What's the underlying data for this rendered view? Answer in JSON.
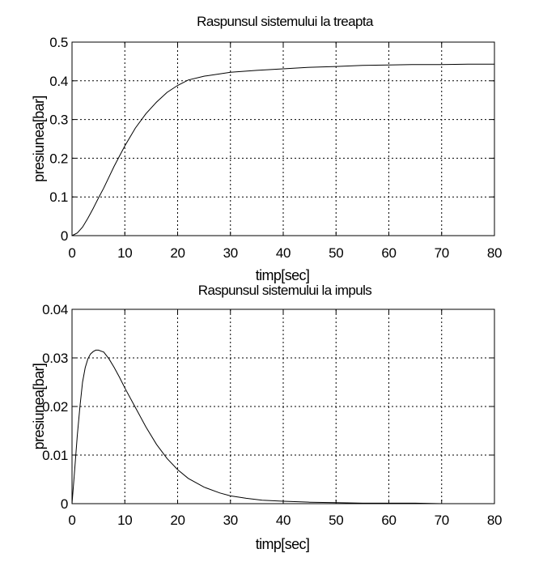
{
  "chart_data": [
    {
      "type": "line",
      "title": "Raspunsul sistemului la treapta",
      "xlabel": "timp[sec]",
      "ylabel": "presiunea[bar]",
      "xlim": [
        0,
        80
      ],
      "ylim": [
        0,
        0.5
      ],
      "grid": true,
      "xticks": [
        "0",
        "10",
        "20",
        "30",
        "40",
        "50",
        "60",
        "70",
        "80"
      ],
      "yticks": [
        "0",
        "0.1",
        "0.2",
        "0.3",
        "0.4",
        "0.5"
      ],
      "x": [
        0,
        1,
        2,
        3,
        4,
        5,
        6,
        8,
        10,
        12,
        14,
        16,
        18,
        20,
        22,
        25,
        30,
        35,
        40,
        45,
        50,
        55,
        60,
        65,
        70,
        75,
        80
      ],
      "y": [
        0,
        0.007,
        0.022,
        0.045,
        0.07,
        0.097,
        0.123,
        0.18,
        0.232,
        0.278,
        0.315,
        0.345,
        0.37,
        0.388,
        0.402,
        0.412,
        0.422,
        0.427,
        0.431,
        0.435,
        0.437,
        0.44,
        0.441,
        0.442,
        0.442,
        0.443,
        0.443
      ]
    },
    {
      "type": "line",
      "title": "Raspunsul sistemului la impuls",
      "xlabel": "timp[sec]",
      "ylabel": "presiunea[bar]",
      "xlim": [
        0,
        80
      ],
      "ylim": [
        0,
        0.04
      ],
      "grid": true,
      "xticks": [
        "0",
        "10",
        "20",
        "30",
        "40",
        "50",
        "60",
        "70",
        "80"
      ],
      "yticks": [
        "0",
        "0.01",
        "0.02",
        "0.03",
        "0.04"
      ],
      "x": [
        0,
        0.5,
        1,
        1.5,
        2,
        2.5,
        3,
        3.5,
        4,
        4.5,
        5,
        6,
        7,
        8,
        9,
        10,
        12,
        14,
        16,
        18,
        20,
        22,
        25,
        28,
        30,
        33,
        36,
        40,
        45,
        50,
        55,
        60,
        65,
        70,
        75,
        77.5
      ],
      "y": [
        0,
        0.007,
        0.014,
        0.02,
        0.025,
        0.028,
        0.0298,
        0.0308,
        0.0313,
        0.0316,
        0.0316,
        0.0312,
        0.0298,
        0.028,
        0.026,
        0.0238,
        0.0198,
        0.0158,
        0.0122,
        0.0093,
        0.007,
        0.0052,
        0.0034,
        0.0022,
        0.0016,
        0.0011,
        0.0007,
        0.0005,
        0.0003,
        0.0002,
        0.0001,
        0.0001,
        0.0001,
        0.0,
        0.0,
        0.0
      ]
    }
  ]
}
